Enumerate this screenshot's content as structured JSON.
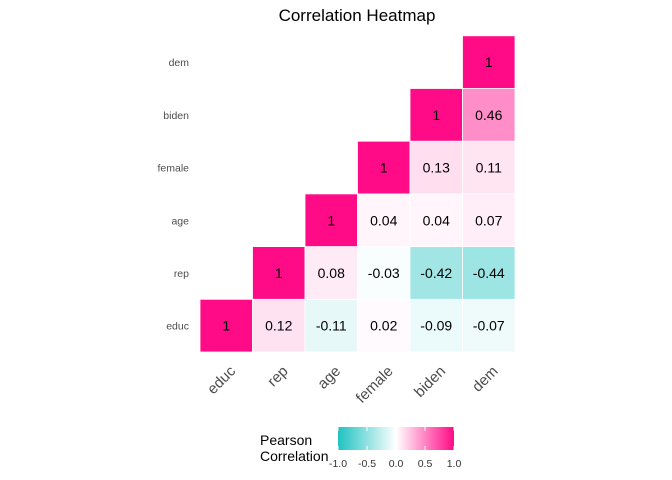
{
  "chart_data": {
    "type": "heatmap",
    "title": "Correlation Heatmap",
    "variables": [
      "educ",
      "rep",
      "age",
      "female",
      "biden",
      "dem"
    ],
    "matrix": [
      [
        1,
        0.12,
        -0.11,
        0.02,
        -0.09,
        -0.07
      ],
      [
        0.12,
        1,
        0.08,
        -0.03,
        -0.42,
        -0.44
      ],
      [
        -0.11,
        0.08,
        1,
        0.04,
        0.04,
        0.07
      ],
      [
        0.02,
        -0.03,
        0.04,
        1,
        0.13,
        0.11
      ],
      [
        -0.09,
        -0.42,
        0.04,
        0.13,
        1,
        0.46
      ],
      [
        -0.07,
        -0.44,
        0.07,
        0.11,
        0.46,
        1
      ]
    ],
    "display": "lower-triangle",
    "legend": {
      "title_lines": [
        "Pearson",
        "Correlation"
      ],
      "ticks": [
        -1.0,
        -0.5,
        0.0,
        0.5,
        1.0
      ],
      "tick_labels": [
        "-1.0",
        "-0.5",
        "0.0",
        "0.5",
        "1.0"
      ],
      "range": [
        -1,
        1
      ],
      "placement": "bottom",
      "colors": {
        "low": "#20C2C2",
        "mid": "#FFFFFF",
        "high": "#FF0A87"
      }
    }
  }
}
